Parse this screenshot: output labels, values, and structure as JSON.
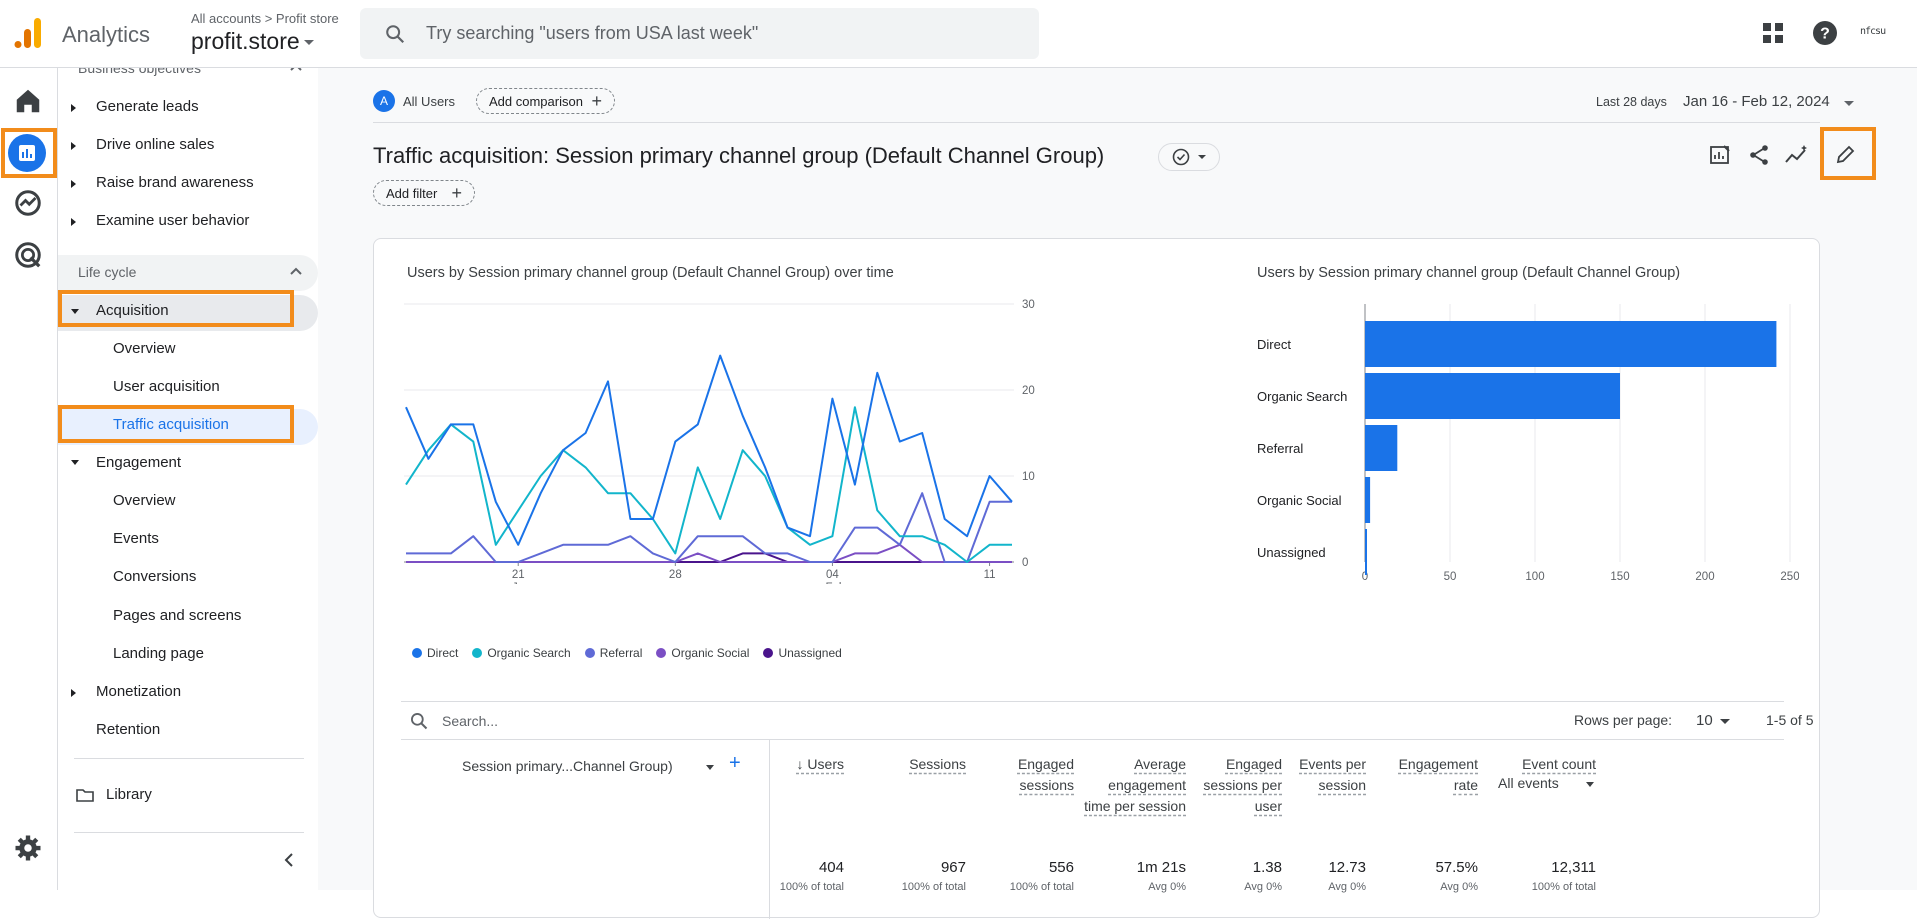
{
  "header": {
    "app_title": "Analytics",
    "breadcrumb": "All accounts > Profit store",
    "property": "profit.store",
    "search_placeholder": "Try searching \"users from USA last week\"",
    "account_badge": "nfcsu"
  },
  "nav": {
    "sections": {
      "business_objectives": "Business objectives",
      "life_cycle": "Life cycle"
    },
    "business_items": [
      "Generate leads",
      "Drive online sales",
      "Raise brand awareness",
      "Examine user behavior"
    ],
    "acquisition": "Acquisition",
    "acquisition_items": [
      "Overview",
      "User acquisition",
      "Traffic acquisition"
    ],
    "engagement": "Engagement",
    "engagement_items": [
      "Overview",
      "Events",
      "Conversions",
      "Pages and screens",
      "Landing page"
    ],
    "monetization": "Monetization",
    "retention": "Retention",
    "library": "Library"
  },
  "toolbar": {
    "segment_badge": "A",
    "segment_label": "All Users",
    "add_comparison": "Add comparison",
    "date_prefix": "Last 28 days",
    "date_range": "Jan 16 - Feb 12, 2024",
    "page_title": "Traffic acquisition: Session primary channel group (Default Channel Group)",
    "add_filter": "Add filter"
  },
  "colors": {
    "accent": "#1a73e8",
    "highlight": "#f28c1b",
    "direct": "#1a73e8",
    "organic_search": "#12b5cb",
    "referral": "#5f6ad6",
    "organic_social": "#7b4fc4",
    "unassigned": "#4a148c"
  },
  "chart_data": [
    {
      "type": "line",
      "title": "Users by Session primary channel group (Default Channel Group) over time",
      "x_tick_labels": [
        "21",
        "28",
        "04",
        "11"
      ],
      "x_tick_sublabels": [
        "Jan",
        "",
        "Feb",
        ""
      ],
      "y_ticks": [
        0,
        10,
        20,
        30
      ],
      "ylim": [
        0,
        30
      ],
      "x": [
        "Jan 16",
        "Jan 17",
        "Jan 18",
        "Jan 19",
        "Jan 20",
        "Jan 21",
        "Jan 22",
        "Jan 23",
        "Jan 24",
        "Jan 25",
        "Jan 26",
        "Jan 27",
        "Jan 28",
        "Jan 29",
        "Jan 30",
        "Jan 31",
        "Feb 1",
        "Feb 2",
        "Feb 3",
        "Feb 4",
        "Feb 5",
        "Feb 6",
        "Feb 7",
        "Feb 8",
        "Feb 9",
        "Feb 10",
        "Feb 11",
        "Feb 12"
      ],
      "series": [
        {
          "name": "Direct",
          "values": [
            18,
            12,
            16,
            16,
            7,
            2,
            8,
            13,
            15,
            21,
            5,
            5,
            14,
            16,
            24,
            17,
            11,
            4,
            3,
            19,
            9,
            22,
            14,
            15,
            5,
            3,
            10,
            7
          ]
        },
        {
          "name": "Organic Search",
          "values": [
            9,
            13,
            16,
            14,
            2,
            6,
            10,
            13,
            11,
            8,
            8,
            5,
            1,
            11,
            5,
            13,
            10,
            4,
            2,
            3,
            18,
            6,
            3,
            3,
            2,
            0,
            2,
            2
          ]
        },
        {
          "name": "Referral",
          "values": [
            1,
            1,
            1,
            3,
            0,
            0,
            1,
            2,
            2,
            2,
            3,
            1,
            0,
            3,
            3,
            3,
            1,
            1,
            0,
            0,
            4,
            4,
            2,
            8,
            0,
            0,
            7,
            7
          ]
        },
        {
          "name": "Organic Social",
          "values": [
            0,
            0,
            0,
            0,
            0,
            0,
            0,
            0,
            0,
            0,
            0,
            0,
            0,
            1,
            0,
            0,
            0,
            0,
            0,
            0,
            1,
            1,
            2,
            0,
            0,
            0,
            0,
            0
          ]
        },
        {
          "name": "Unassigned",
          "values": [
            0,
            0,
            0,
            0,
            0,
            0,
            0,
            0,
            0,
            0,
            0,
            0,
            0,
            0,
            0,
            1,
            1,
            0,
            0,
            0,
            0,
            0,
            0,
            0,
            0,
            0,
            0,
            0
          ]
        }
      ],
      "legend_position": "bottom-left"
    },
    {
      "type": "bar",
      "orientation": "horizontal",
      "title": "Users by Session primary channel group (Default Channel Group)",
      "categories": [
        "Direct",
        "Organic Search",
        "Referral",
        "Organic Social",
        "Unassigned"
      ],
      "values": [
        242,
        150,
        19,
        3,
        1
      ],
      "x_ticks": [
        0,
        50,
        100,
        150,
        200,
        250
      ],
      "xlim": [
        0,
        250
      ]
    }
  ],
  "table": {
    "search_placeholder": "Search...",
    "rows_per_page_label": "Rows per page:",
    "rows_per_page": "10",
    "pagination": "1-5 of 5",
    "dimension_header": "Session primary...Channel Group)",
    "columns": [
      {
        "label": "↓ Users",
        "total": "404",
        "sub": "100% of total"
      },
      {
        "label": "Sessions",
        "total": "967",
        "sub": "100% of total"
      },
      {
        "label": "Engaged sessions",
        "total": "556",
        "sub": "100% of total"
      },
      {
        "label": "Average engagement time per session",
        "total": "1m 21s",
        "sub": "Avg 0%"
      },
      {
        "label": "Engaged sessions per user",
        "total": "1.38",
        "sub": "Avg 0%"
      },
      {
        "label": "Events per session",
        "total": "12.73",
        "sub": "Avg 0%"
      },
      {
        "label": "Engagement rate",
        "total": "57.5%",
        "sub": "Avg 0%"
      },
      {
        "label": "Event count",
        "total": "12,311",
        "sub": "100% of total"
      }
    ],
    "event_filter": "All events"
  }
}
